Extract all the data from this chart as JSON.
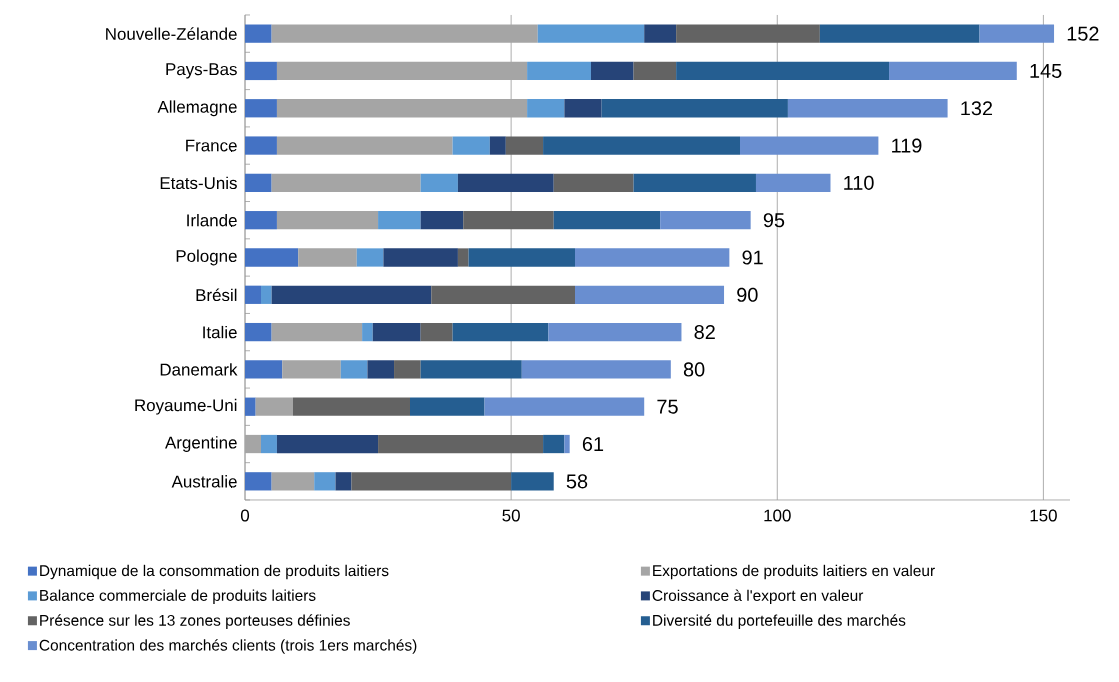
{
  "chart_data": {
    "type": "bar",
    "orientation": "horizontal",
    "stacked": true,
    "categories": [
      "Nouvelle-Zélande",
      "Pays-Bas",
      "Allemagne",
      "France",
      "Etats-Unis",
      "Irlande",
      "Pologne",
      "Brésil",
      "Italie",
      "Danemark",
      "Royaume-Uni",
      "Argentine",
      "Australie"
    ],
    "series": [
      {
        "name": "Dynamique de la consommation de produits laitiers",
        "color": "#4472c4",
        "values": [
          5,
          6,
          6,
          6,
          5,
          6,
          10,
          3,
          5,
          7,
          2,
          null,
          5
        ]
      },
      {
        "name": "Exportations de produits laitiers en valeur",
        "color": "#a5a5a5",
        "values": [
          50,
          47,
          47,
          33,
          28,
          19,
          11,
          null,
          17,
          11,
          7,
          3,
          8
        ]
      },
      {
        "name": "Balance commerciale de produits laitiers",
        "color": "#5b9bd5",
        "values": [
          20,
          12,
          7,
          7,
          7,
          8,
          5,
          2,
          2,
          5,
          null,
          3,
          4
        ]
      },
      {
        "name": "Croissance à l'export en valeur",
        "color": "#264478",
        "values": [
          6,
          8,
          7,
          3,
          18,
          8,
          14,
          30,
          9,
          5,
          null,
          19,
          3
        ]
      },
      {
        "name": "Présence sur les 13 zones porteuses définies",
        "color": "#636363",
        "values": [
          27,
          8,
          null,
          7,
          15,
          17,
          2,
          27,
          6,
          5,
          22,
          31,
          30
        ]
      },
      {
        "name": "Diversité du portefeuille des marchés",
        "color": "#255e91",
        "values": [
          30,
          40,
          35,
          37,
          23,
          20,
          20,
          null,
          18,
          19,
          14,
          4,
          8
        ]
      },
      {
        "name": "Concentration des marchés clients (trois 1ers marchés)",
        "color": "#698ed0",
        "values": [
          14,
          24,
          30,
          26,
          14,
          17,
          29,
          28,
          25,
          28,
          30,
          1,
          null
        ]
      }
    ],
    "totals": [
      "152",
      "145",
      "132",
      "119",
      "110",
      "95",
      "91",
      "90",
      "82",
      "80",
      "75",
      "61",
      "58"
    ],
    "xlim": [
      0,
      155
    ],
    "xticks": [
      0,
      50,
      100,
      150
    ],
    "grid": "x",
    "legend": "bottom"
  }
}
